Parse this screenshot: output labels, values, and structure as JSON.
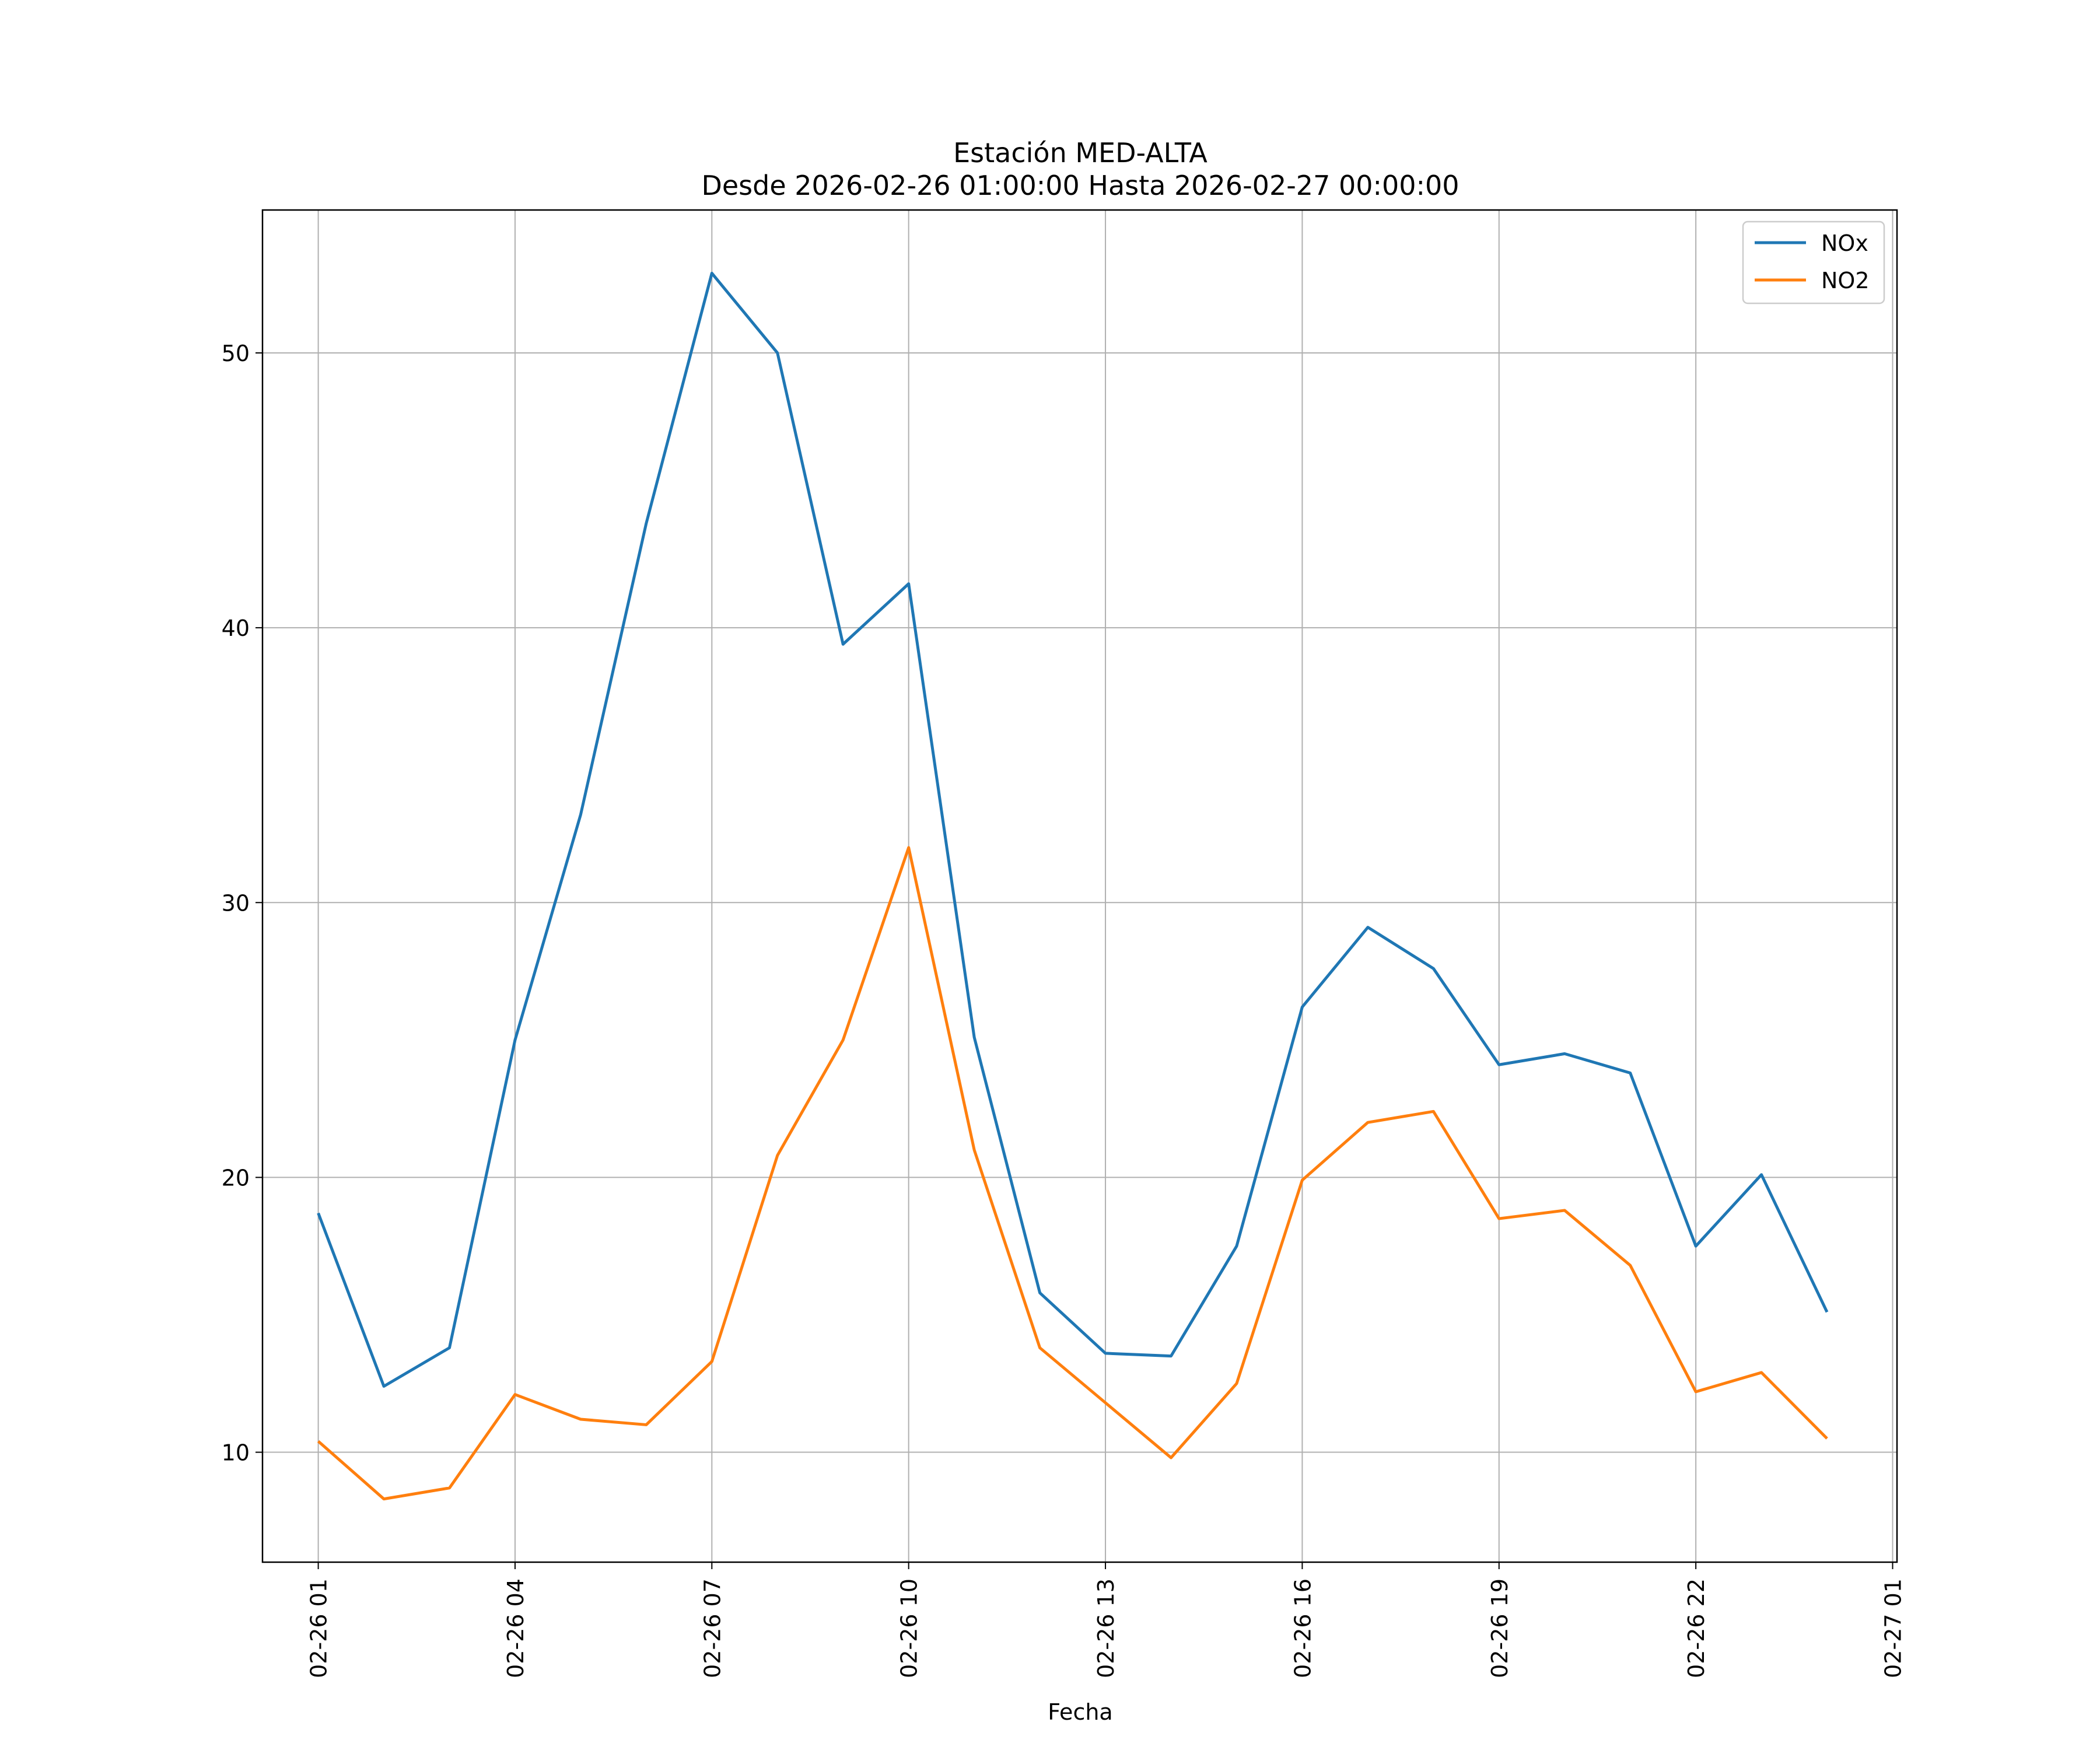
{
  "chart_data": {
    "type": "line",
    "title": "Estación MED-ALTA",
    "subtitle": "Desde 2026-02-26 01:00:00 Hasta 2026-02-27 00:00:00",
    "xlabel": "Fecha",
    "ylabel": "",
    "x": [
      "2026-02-26 01:00",
      "2026-02-26 02:00",
      "2026-02-26 03:00",
      "2026-02-26 04:00",
      "2026-02-26 05:00",
      "2026-02-26 06:00",
      "2026-02-26 07:00",
      "2026-02-26 08:00",
      "2026-02-26 09:00",
      "2026-02-26 10:00",
      "2026-02-26 11:00",
      "2026-02-26 12:00",
      "2026-02-26 13:00",
      "2026-02-26 14:00",
      "2026-02-26 15:00",
      "2026-02-26 16:00",
      "2026-02-26 17:00",
      "2026-02-26 18:00",
      "2026-02-26 19:00",
      "2026-02-26 20:00",
      "2026-02-26 21:00",
      "2026-02-26 22:00",
      "2026-02-26 23:00",
      "2026-02-27 00:00"
    ],
    "series": [
      {
        "name": "NOx",
        "color": "#1f77b4",
        "values": [
          18.7,
          12.4,
          13.8,
          25.0,
          33.2,
          43.8,
          52.9,
          50.0,
          39.4,
          41.6,
          25.1,
          15.8,
          13.6,
          13.5,
          17.5,
          26.2,
          29.1,
          27.6,
          24.1,
          24.5,
          23.8,
          17.5,
          20.1,
          15.1
        ]
      },
      {
        "name": "NO2",
        "color": "#ff7f0e",
        "values": [
          10.4,
          8.3,
          8.7,
          12.1,
          11.2,
          11.0,
          13.3,
          20.8,
          25.0,
          32.0,
          21.0,
          13.8,
          11.8,
          9.8,
          12.5,
          19.9,
          22.0,
          22.4,
          18.5,
          18.8,
          16.8,
          12.2,
          12.9,
          10.5
        ]
      }
    ],
    "xticks": [
      "02-26 01",
      "02-26 04",
      "02-26 07",
      "02-26 10",
      "02-26 13",
      "02-26 16",
      "02-26 19",
      "02-26 22",
      "02-27 01"
    ],
    "yticks": [
      "10",
      "20",
      "30",
      "40",
      "50"
    ],
    "ylim": [
      6.0,
      55.2
    ],
    "xlim": [
      "2026-02-26 00:09",
      "2026-02-27 01:04"
    ],
    "grid": true,
    "legend": "top-right"
  }
}
